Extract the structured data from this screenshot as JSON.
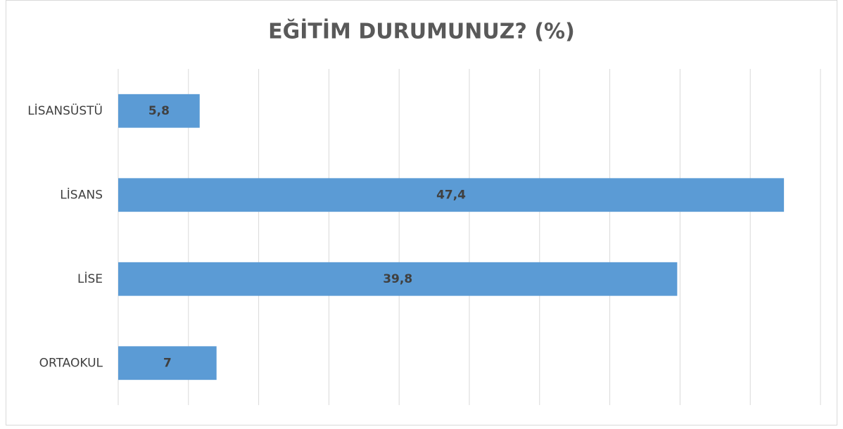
{
  "chart_data": {
    "type": "barh",
    "title": "EĞİTİM DURUMUNUZ? (%)",
    "categories": [
      "LİSANSÜSTÜ",
      "LİSANS",
      "LİSE",
      "ORTAOKUL"
    ],
    "values": [
      5.8,
      47.4,
      39.8,
      7
    ],
    "value_labels": [
      "5,8",
      "47,4",
      "39,8",
      "7"
    ],
    "color": "#5b9bd5",
    "xlim": [
      0,
      50
    ],
    "xticks": [
      0,
      5,
      10,
      15,
      20,
      25,
      30,
      35,
      40,
      45,
      50
    ],
    "grid": true
  }
}
